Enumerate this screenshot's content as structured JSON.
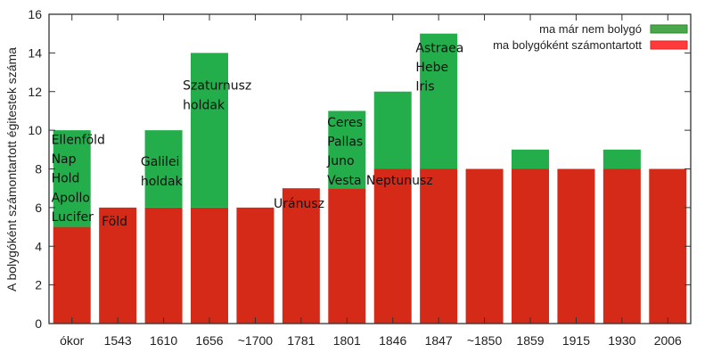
{
  "chart_data": {
    "type": "bar",
    "stacked": true,
    "title": "",
    "xlabel": "",
    "ylabel": "A bolygóként számontartott égitestek száma",
    "ylim": [
      0,
      16
    ],
    "yticks": [
      "0",
      "2",
      "4",
      "6",
      "8",
      "10",
      "12",
      "14",
      "16"
    ],
    "grid": false,
    "legend_position": "top-right",
    "categories": [
      "ókor",
      "1543",
      "1610",
      "1656",
      "~1700",
      "1781",
      "1801",
      "1846",
      "1847",
      "~1850",
      "1859",
      "1915",
      "1930",
      "2006"
    ],
    "series": [
      {
        "name": "ma bolygóként számontartott",
        "color": "#d62a19",
        "legend_color": "#ff3b3b",
        "values": [
          5,
          6,
          6,
          6,
          6,
          7,
          7,
          8,
          8,
          8,
          8,
          8,
          8,
          8
        ]
      },
      {
        "name": "ma már nem bolygó",
        "color": "#23ad4b",
        "legend_color": "#4ca64c",
        "values": [
          5,
          0,
          4,
          8,
          0,
          0,
          4,
          4,
          7,
          0,
          1,
          0,
          1,
          0
        ]
      }
    ],
    "annotations": [
      {
        "category": 0,
        "dx": -0.45,
        "y": 9.3,
        "lines": [
          "Ellenföld",
          "Nap",
          "Hold",
          "Apollo",
          "Lucifer"
        ]
      },
      {
        "category": 1,
        "dx": -0.35,
        "y": 5.07,
        "lines": [
          "Föld"
        ]
      },
      {
        "category": 2,
        "dx": -0.5,
        "y": 8.15,
        "lines": [
          "Galilei",
          "holdak"
        ]
      },
      {
        "category": 3,
        "dx": -0.58,
        "y": 12.1,
        "lines": [
          "Szaturnusz",
          "holdak"
        ]
      },
      {
        "category": 5,
        "dx": -0.6,
        "y": 6.0,
        "lines": [
          "Uránusz"
        ]
      },
      {
        "category": 6,
        "dx": -0.43,
        "y": 10.2,
        "lines": [
          "Ceres",
          "Pallas",
          "Juno",
          "Vesta"
        ]
      },
      {
        "category": 7,
        "dx": -0.58,
        "y": 7.2,
        "lines": [
          "Neptunusz"
        ]
      },
      {
        "category": 8,
        "dx": -0.5,
        "y": 14.05,
        "lines": [
          "Astraea",
          "Hebe",
          "Iris"
        ]
      }
    ]
  }
}
